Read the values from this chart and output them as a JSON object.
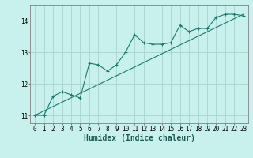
{
  "xlabel": "Humidex (Indice chaleur)",
  "bg_color": "#c8f0ec",
  "grid_color": "#a8d4ce",
  "line_color": "#1a7a6e",
  "marker_color": "#1a7a6e",
  "xlim": [
    -0.5,
    23.5
  ],
  "ylim": [
    10.75,
    14.5
  ],
  "yticks": [
    11,
    12,
    13,
    14
  ],
  "xticks": [
    0,
    1,
    2,
    3,
    4,
    5,
    6,
    7,
    8,
    9,
    10,
    11,
    12,
    13,
    14,
    15,
    16,
    17,
    18,
    19,
    20,
    21,
    22,
    23
  ],
  "scatter_x": [
    0,
    1,
    2,
    3,
    4,
    5,
    6,
    7,
    8,
    9,
    10,
    11,
    12,
    13,
    14,
    15,
    16,
    17,
    18,
    19,
    20,
    21,
    22,
    23
  ],
  "scatter_y": [
    11.0,
    11.0,
    11.6,
    11.75,
    11.65,
    11.55,
    12.65,
    12.6,
    12.4,
    12.6,
    13.0,
    13.55,
    13.3,
    13.25,
    13.25,
    13.3,
    13.85,
    13.65,
    13.75,
    13.75,
    14.1,
    14.2,
    14.2,
    14.15
  ],
  "line2_x": [
    0,
    23
  ],
  "line2_y": [
    11.0,
    14.2
  ],
  "font_size_label": 6.5,
  "font_size_tick": 5.5,
  "font_size_xlabel": 7.0
}
